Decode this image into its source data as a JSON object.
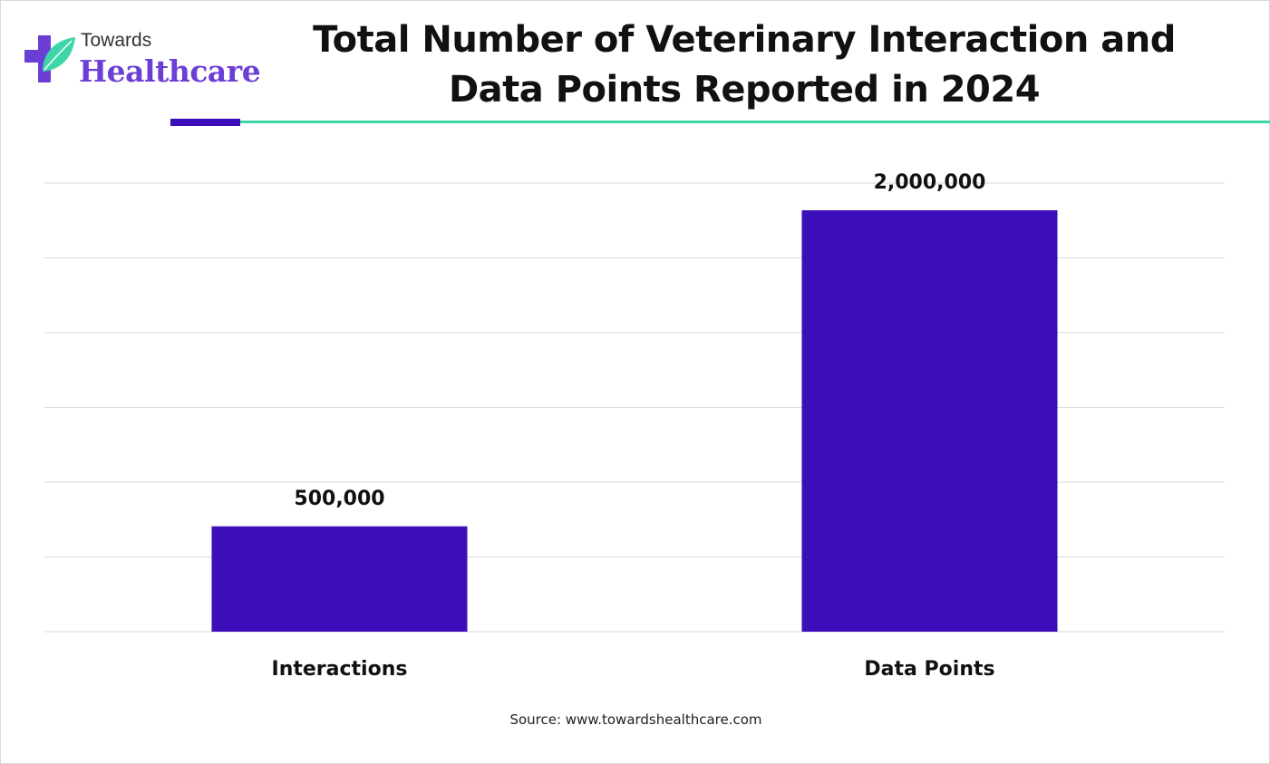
{
  "brand": {
    "line1": "Towards",
    "line2": "Healthcare",
    "icon": "plus-leaf-icon",
    "colors": {
      "cross": "#6b3fd6",
      "leaf": "#3ed6a8"
    }
  },
  "title_lines": [
    "Total Number of Veterinary Interaction and",
    "Data Points Reported in 2024"
  ],
  "source": "Source: www.towardshealthcare.com",
  "colors": {
    "bar": "#3d0fba",
    "accent": "#3d0fba",
    "divider": "#3ed6a8",
    "grid": "#d9d9d9"
  },
  "chart_data": {
    "type": "bar",
    "title": "Total Number of Veterinary Interaction and Data Points Reported in 2024",
    "categories": [
      "Interactions",
      "Data Points"
    ],
    "values": [
      500000,
      2000000
    ],
    "value_labels": [
      "500,000",
      "2,000,000"
    ],
    "ylim": [
      0,
      2000000
    ],
    "grid": true,
    "legend": "none"
  }
}
